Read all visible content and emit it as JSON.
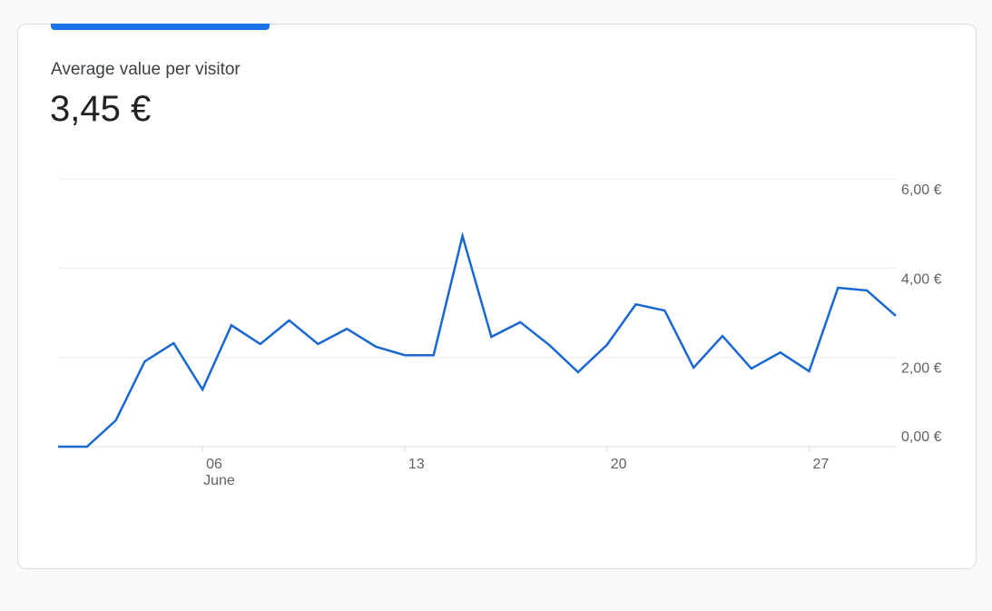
{
  "card": {
    "title": "Average value per visitor",
    "value": "3,45 €"
  },
  "chart_data": {
    "type": "line",
    "x": [
      1,
      2,
      3,
      4,
      5,
      6,
      7,
      8,
      9,
      10,
      11,
      12,
      13,
      14,
      15,
      16,
      17,
      18,
      19,
      20,
      21,
      22,
      23,
      24,
      25,
      26,
      27,
      28,
      29,
      30
    ],
    "series": [
      {
        "name": "Average value per visitor",
        "color": "#1967d2",
        "values": [
          0,
          0,
          0.59,
          1.91,
          2.32,
          1.28,
          2.72,
          2.3,
          2.83,
          2.3,
          2.64,
          2.24,
          2.05,
          2.05,
          4.72,
          2.46,
          2.79,
          2.28,
          1.67,
          2.28,
          3.19,
          3.05,
          1.77,
          2.48,
          1.75,
          2.11,
          1.69,
          3.56,
          3.5,
          2.93
        ]
      }
    ],
    "xlim": [
      1,
      30
    ],
    "xticks": [
      {
        "value": 6,
        "label": "06"
      },
      13,
      20,
      27
    ],
    "month_label": "June",
    "ylim": [
      0,
      6
    ],
    "yticks": [
      {
        "value": 0,
        "label": "0,00 €"
      },
      {
        "value": 2,
        "label": "2,00 €"
      },
      {
        "value": 4,
        "label": "4,00 €"
      },
      {
        "value": 6,
        "label": "6,00 €"
      }
    ],
    "grid": true
  }
}
